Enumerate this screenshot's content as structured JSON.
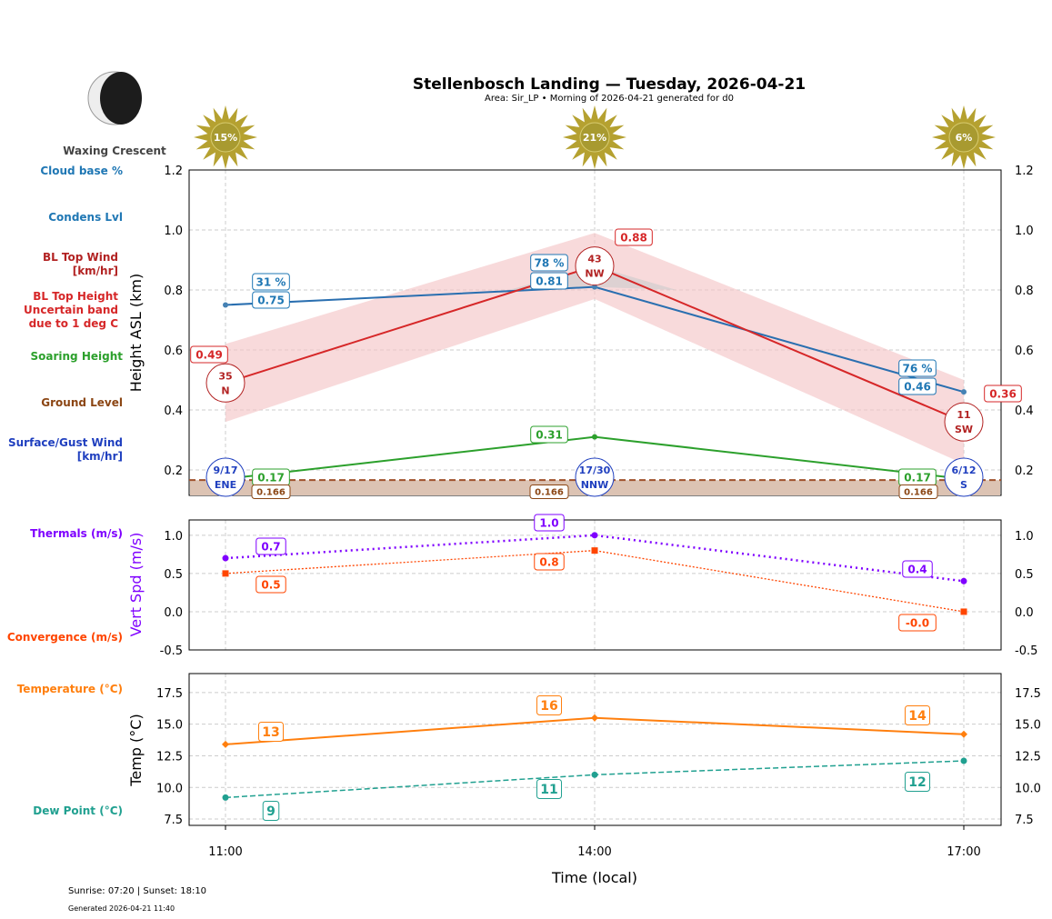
{
  "title": "Stellenbosch Landing — Tuesday, 2026-04-21",
  "subtitle": "Area: Sir_LP • Morning of 2026-04-21 generated for d0",
  "moon_phase": "Waxing Crescent",
  "footer": {
    "sun": "Sunrise: 07:20 | Sunset: 18:10",
    "generated": "Generated 2026-04-21 11:40"
  },
  "legend": [
    {
      "label": "Cloud base %",
      "color": "#1f77b4"
    },
    {
      "label": "Condens Lvl",
      "color": "#1f77b4"
    },
    {
      "label": "BL Top Wind\n[km/hr]",
      "color": "#b22222"
    },
    {
      "label": "BL Top Height\nUncertain band\ndue to 1 deg C",
      "color": "#d62728"
    },
    {
      "label": "Soaring Height",
      "color": "#2ca02c"
    },
    {
      "label": "Ground Level",
      "color": "#8b4513"
    },
    {
      "label": "Surface/Gust Wind\n[km/hr]",
      "color": "#1f3fbf"
    },
    {
      "label": "Thermals (m/s)",
      "color": "#7f00ff"
    },
    {
      "label": "Convergence (m/s)",
      "color": "#ff4500"
    },
    {
      "label": "Temperature (°C)",
      "color": "#ff7f0e"
    },
    {
      "label": "Dew Point (°C)",
      "color": "#20a090"
    }
  ],
  "chart_data": [
    {
      "type": "line",
      "ylabel": "Height ASL (km)",
      "ylim": [
        0.115,
        1.2
      ],
      "yticks": [
        0.2,
        0.4,
        0.6,
        0.8,
        1.0,
        1.2
      ],
      "x": [
        "11:00",
        "14:00",
        "17:00"
      ],
      "sun_percent": [
        "15%",
        "21%",
        "6%"
      ],
      "condens_lvl": [
        0.75,
        0.81,
        0.46
      ],
      "condens_lbl": [
        "0.75",
        "0.81",
        "0.46"
      ],
      "cloud_base_pct": [
        "31 %",
        "78 %",
        "76 %"
      ],
      "bl_top": [
        0.49,
        0.88,
        0.36
      ],
      "bl_top_lbl": [
        "0.49",
        "0.88",
        "0.36"
      ],
      "bl_band_low": [
        0.36,
        0.77,
        0.22
      ],
      "bl_band_high": [
        0.62,
        0.99,
        0.5
      ],
      "bl_wind": [
        {
          "speed": "35",
          "dir": "N"
        },
        {
          "speed": "43",
          "dir": "NW"
        },
        {
          "speed": "11",
          "dir": "SW"
        }
      ],
      "soaring": [
        0.17,
        0.31,
        0.17
      ],
      "soaring_lbl": [
        "0.17",
        "0.31",
        "0.17"
      ],
      "ground": 0.166,
      "ground_lbl": "0.166",
      "surface_wind": [
        {
          "speed": "9/17",
          "dir": "ENE"
        },
        {
          "speed": "17/30",
          "dir": "NNW"
        },
        {
          "speed": "6/12",
          "dir": "S"
        }
      ]
    },
    {
      "type": "line",
      "ylabel": "Vert Spd (m/s)",
      "ylim": [
        -0.5,
        1.2
      ],
      "yticks": [
        -0.5,
        0.0,
        0.5,
        1.0
      ],
      "thermals": [
        0.7,
        1.0,
        0.4
      ],
      "thermals_lbl": [
        "0.7",
        "1.0",
        "0.4"
      ],
      "convergence": [
        0.5,
        0.8,
        0.0
      ],
      "convergence_lbl": [
        "0.5",
        "0.8",
        "-0.0"
      ]
    },
    {
      "type": "line",
      "ylabel": "Temp (°C)",
      "xlabel": "Time (local)",
      "ylim": [
        7,
        19
      ],
      "yticks": [
        7.5,
        10.0,
        12.5,
        15.0,
        17.5
      ],
      "temperature": [
        13.4,
        15.5,
        14.2
      ],
      "temperature_lbl": [
        "13",
        "16",
        "14"
      ],
      "dew_point": [
        9.2,
        11.0,
        12.1
      ],
      "dew_point_lbl": [
        "9",
        "11",
        "12"
      ]
    }
  ]
}
